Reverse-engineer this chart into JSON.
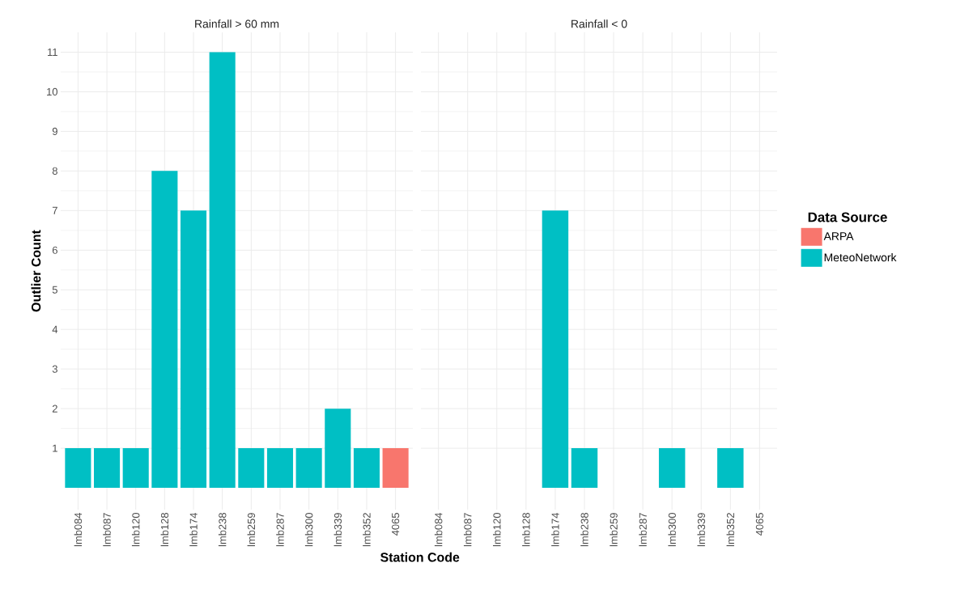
{
  "chart_data": [
    {
      "type": "bar",
      "title": "Rainfall > 60 mm",
      "xlabel": "Station Code",
      "ylabel": "Outlier Count",
      "categories": [
        "lmb084",
        "lmb087",
        "lmb120",
        "lmb128",
        "lmb174",
        "lmb238",
        "lmb259",
        "lmb287",
        "lmb300",
        "lmb339",
        "lmb352",
        "4065"
      ],
      "series": [
        {
          "color": "#f8766d",
          "values": [
            null,
            null,
            null,
            null,
            null,
            null,
            null,
            null,
            null,
            null,
            null,
            1
          ]
        },
        {
          "color": "#00bfc4",
          "values": [
            1,
            1,
            1,
            8,
            7,
            11,
            1,
            1,
            1,
            2,
            1,
            null
          ]
        }
      ],
      "ylim": [
        -0.55,
        11.5
      ],
      "yticks": [
        1,
        2,
        3,
        4,
        5,
        6,
        7,
        8,
        9,
        10,
        11
      ],
      "grid": true
    },
    {
      "type": "bar",
      "title": "Rainfall < 0",
      "legend_title": "Data Source",
      "legend": "right",
      "categories": [
        "lmb084",
        "lmb087",
        "lmb120",
        "lmb128",
        "lmb174",
        "lmb238",
        "lmb259",
        "lmb287",
        "lmb300",
        "lmb339",
        "lmb352",
        "4065"
      ],
      "series": [
        {
          "name": "ARPA",
          "color": "#f8766d",
          "values": [
            null,
            null,
            null,
            null,
            null,
            null,
            null,
            null,
            null,
            null,
            null,
            null
          ]
        },
        {
          "name": "MeteoNetwork",
          "color": "#00bfc4",
          "values": [
            null,
            null,
            null,
            null,
            7,
            1,
            null,
            null,
            1,
            null,
            1,
            null
          ]
        }
      ],
      "ylim": [
        -0.55,
        11.5
      ],
      "yticks": [
        1,
        2,
        3,
        4,
        5,
        6,
        7,
        8,
        9,
        10,
        11
      ],
      "grid": true,
      "tick_labels": "x"
    }
  ]
}
